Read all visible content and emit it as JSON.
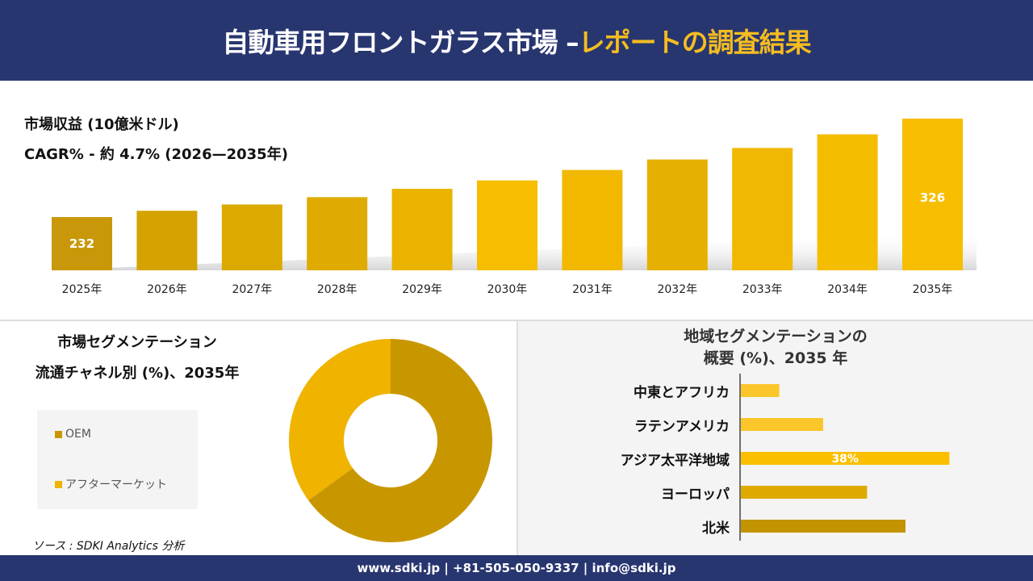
{
  "header": {
    "title_main": "自動車用フロントガラス市場 –",
    "title_highlight": "レポートの調査結果"
  },
  "kpi": {
    "revenue_label": "市場収益 (10億米ドル)",
    "cagr_label": "CAGR% - 約 4.7% (2026—2035年)"
  },
  "chart_data": [
    {
      "type": "bar",
      "categories": [
        "2025年",
        "2026年",
        "2027年",
        "2028年",
        "2029年",
        "2030年",
        "2031年",
        "2032年",
        "2033年",
        "2034年",
        "2035年"
      ],
      "values": [
        232,
        238,
        244,
        251,
        259,
        267,
        277,
        287,
        298,
        311,
        326
      ],
      "data_labels": {
        "0": "232",
        "10": "326"
      },
      "colors": [
        "#c9980a",
        "#d4a300",
        "#dba900",
        "#e0ab00",
        "#eab300",
        "#f7bd00",
        "#f2b800",
        "#e6b000",
        "#f0b800",
        "#f5bd00",
        "#f7be00"
      ],
      "ylabel": "市場収益 (10億米ドル)"
    },
    {
      "type": "pie",
      "title_line1": "市場セグメンテーション",
      "title_line2": "流通チャネル別 (%)、2035年",
      "labels": [
        "OEM",
        "アフターマーケット"
      ],
      "values": [
        65,
        35
      ],
      "colors": [
        "#c89700",
        "#efb300"
      ],
      "donut": true
    },
    {
      "type": "bar",
      "orientation": "horizontal",
      "title_line1": "地域セグメンテーションの",
      "title_line2": "概要 (%)、2035 年",
      "categories": [
        "中東とアフリカ",
        "ラテンアメリカ",
        "アジア太平洋地域",
        "ヨーロッパ",
        "北米"
      ],
      "values": [
        7,
        15,
        38,
        23,
        30
      ],
      "data_labels": {
        "2": "38%"
      },
      "colors": [
        "#fbc62a",
        "#fbc62a",
        "#fbbf00",
        "#deaa00",
        "#c49300"
      ]
    }
  ],
  "source": "ソース : SDKI Analytics 分析",
  "footer": "www.sdki.jp | +81-505-050-9337 | info@sdki.jp"
}
